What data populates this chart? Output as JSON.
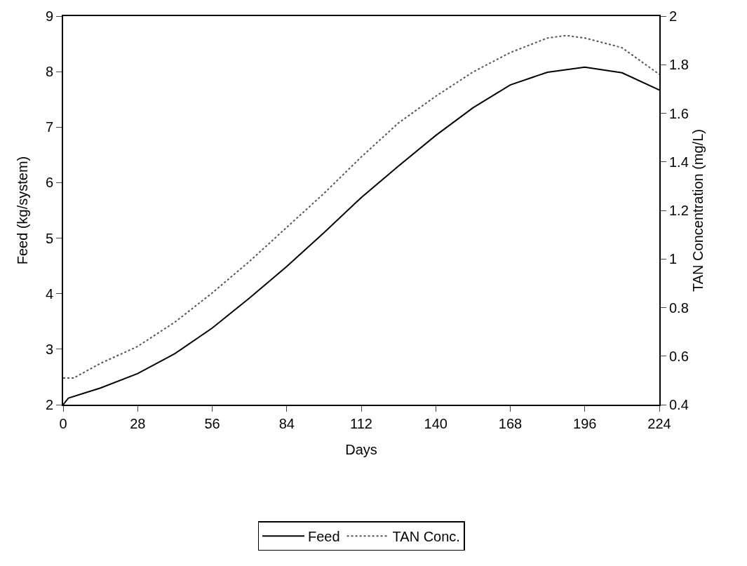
{
  "chart_data": {
    "type": "line",
    "xlabel": "Days",
    "ylabel": "Feed (kg/system)",
    "y2label": "TAN Concentration (mg/L)",
    "xlim": [
      0,
      224
    ],
    "xticks": [
      0,
      28,
      56,
      84,
      112,
      140,
      168,
      196,
      224
    ],
    "ylim": [
      2,
      9
    ],
    "yticks": [
      2,
      3,
      4,
      5,
      6,
      7,
      8,
      9
    ],
    "y2lim": [
      0.4,
      2
    ],
    "y2ticks": [
      0.4,
      0.6,
      0.8,
      1,
      1.2,
      1.4,
      1.6,
      1.8,
      2
    ],
    "grid": false,
    "legend": "bottom",
    "marker": "none",
    "series": [
      {
        "name": "Feed",
        "color": "#000000",
        "line_style": "solid",
        "x": [
          0,
          2,
          14,
          28,
          42,
          56,
          70,
          84,
          98,
          112,
          126,
          140,
          154,
          168,
          182,
          196,
          210,
          224
        ],
        "values": [
          2.0,
          2.12,
          2.3,
          2.56,
          2.92,
          3.38,
          3.92,
          4.49,
          5.1,
          5.73,
          6.3,
          6.85,
          7.35,
          7.76,
          7.99,
          8.08,
          7.98,
          7.67
        ]
      },
      {
        "name": "TAN Conc.",
        "color": "#555555",
        "line_style": "dotted",
        "axis": "y2",
        "x": [
          0,
          4,
          14,
          28,
          42,
          56,
          70,
          84,
          98,
          112,
          126,
          140,
          154,
          168,
          182,
          189,
          196,
          210,
          224
        ],
        "values": [
          0.51,
          0.51,
          0.57,
          0.64,
          0.74,
          0.86,
          0.99,
          1.13,
          1.27,
          1.42,
          1.56,
          1.67,
          1.77,
          1.85,
          1.91,
          1.92,
          1.91,
          1.87,
          1.76
        ]
      }
    ]
  }
}
